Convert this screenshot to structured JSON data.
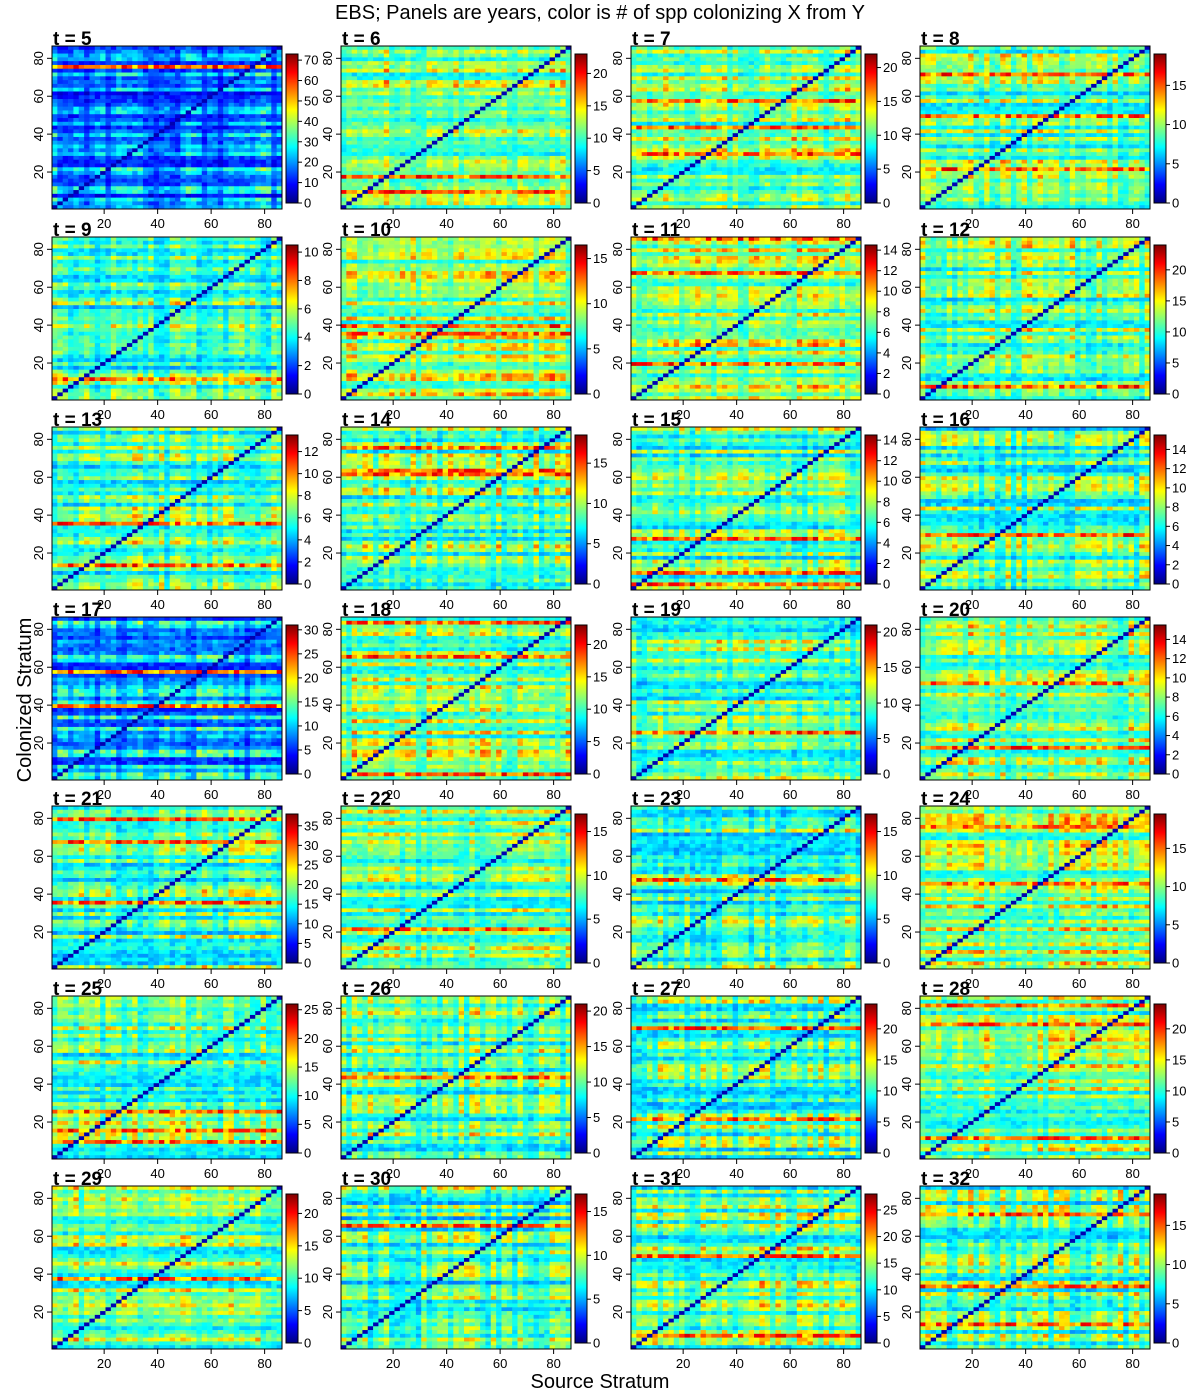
{
  "figure": {
    "title": "EBS; Panels are years, color is # of spp colonizing X from Y",
    "xlabel": "Source Stratum",
    "ylabel": "Colonized Stratum"
  },
  "chart_data": {
    "type": "heatmap",
    "title": "EBS; Panels are years, color is # of spp colonizing X from Y",
    "xlabel": "Source Stratum",
    "ylabel": "Colonized Stratum",
    "colormap": [
      "#00007F",
      "#0000FF",
      "#007FFF",
      "#00FFFF",
      "#7FFF7F",
      "#FFFF00",
      "#FF7F00",
      "#FF0000",
      "#7F0000"
    ],
    "n_strata": 86,
    "xlim": [
      1,
      86
    ],
    "ylim": [
      1,
      86
    ],
    "x_ticks": [
      20,
      40,
      60,
      80
    ],
    "y_ticks": [
      20,
      40,
      60,
      80
    ],
    "panels": [
      {
        "label": "t = 5",
        "zmax": 73,
        "cbar_ticks": [
          0,
          10,
          20,
          30,
          40,
          50,
          60,
          70
        ]
      },
      {
        "label": "t = 6",
        "zmax": 23,
        "cbar_ticks": [
          0,
          5,
          10,
          15,
          20
        ]
      },
      {
        "label": "t = 7",
        "zmax": 22,
        "cbar_ticks": [
          0,
          5,
          10,
          15,
          20
        ]
      },
      {
        "label": "t = 8",
        "zmax": 19,
        "cbar_ticks": [
          0,
          5,
          10,
          15
        ]
      },
      {
        "label": "t = 9",
        "zmax": 10.5,
        "cbar_ticks": [
          0,
          2,
          4,
          6,
          8,
          10
        ]
      },
      {
        "label": "t = 10",
        "zmax": 16.5,
        "cbar_ticks": [
          0,
          5,
          10,
          15
        ]
      },
      {
        "label": "t = 11",
        "zmax": 14.5,
        "cbar_ticks": [
          0,
          2,
          4,
          6,
          8,
          10,
          12,
          14
        ]
      },
      {
        "label": "t = 12",
        "zmax": 24,
        "cbar_ticks": [
          0,
          5,
          10,
          15,
          20
        ]
      },
      {
        "label": "t = 13",
        "zmax": 13.5,
        "cbar_ticks": [
          0,
          2,
          4,
          6,
          8,
          10,
          12
        ]
      },
      {
        "label": "t = 14",
        "zmax": 18.5,
        "cbar_ticks": [
          0,
          5,
          10,
          15
        ]
      },
      {
        "label": "t = 15",
        "zmax": 14.5,
        "cbar_ticks": [
          0,
          2,
          4,
          6,
          8,
          10,
          12,
          14
        ]
      },
      {
        "label": "t = 16",
        "zmax": 15.5,
        "cbar_ticks": [
          0,
          2,
          4,
          6,
          8,
          10,
          12,
          14
        ]
      },
      {
        "label": "t = 17",
        "zmax": 31,
        "cbar_ticks": [
          0,
          5,
          10,
          15,
          20,
          25,
          30
        ]
      },
      {
        "label": "t = 18",
        "zmax": 23,
        "cbar_ticks": [
          0,
          5,
          10,
          15,
          20
        ]
      },
      {
        "label": "t = 19",
        "zmax": 21,
        "cbar_ticks": [
          0,
          5,
          10,
          15,
          20
        ]
      },
      {
        "label": "t = 20",
        "zmax": 15.5,
        "cbar_ticks": [
          0,
          2,
          4,
          6,
          8,
          10,
          12,
          14
        ]
      },
      {
        "label": "t = 21",
        "zmax": 38,
        "cbar_ticks": [
          0,
          5,
          10,
          15,
          20,
          25,
          30,
          35
        ]
      },
      {
        "label": "t = 22",
        "zmax": 17,
        "cbar_ticks": [
          0,
          5,
          10,
          15
        ]
      },
      {
        "label": "t = 23",
        "zmax": 17,
        "cbar_ticks": [
          0,
          5,
          10,
          15
        ]
      },
      {
        "label": "t = 24",
        "zmax": 19.5,
        "cbar_ticks": [
          0,
          5,
          10,
          15
        ]
      },
      {
        "label": "t = 25",
        "zmax": 26,
        "cbar_ticks": [
          0,
          5,
          10,
          15,
          20,
          25
        ]
      },
      {
        "label": "t = 26",
        "zmax": 21,
        "cbar_ticks": [
          0,
          5,
          10,
          15,
          20
        ]
      },
      {
        "label": "t = 27",
        "zmax": 24,
        "cbar_ticks": [
          0,
          5,
          10,
          15,
          20
        ]
      },
      {
        "label": "t = 28",
        "zmax": 24,
        "cbar_ticks": [
          0,
          5,
          10,
          15,
          20
        ]
      },
      {
        "label": "t = 29",
        "zmax": 23,
        "cbar_ticks": [
          0,
          5,
          10,
          15,
          20
        ]
      },
      {
        "label": "t = 30",
        "zmax": 17,
        "cbar_ticks": [
          0,
          5,
          10,
          15
        ]
      },
      {
        "label": "t = 31",
        "zmax": 28,
        "cbar_ticks": [
          0,
          5,
          10,
          15,
          20,
          25
        ]
      },
      {
        "label": "t = 32",
        "zmax": 19,
        "cbar_ticks": [
          0,
          5,
          10,
          15
        ]
      }
    ]
  }
}
